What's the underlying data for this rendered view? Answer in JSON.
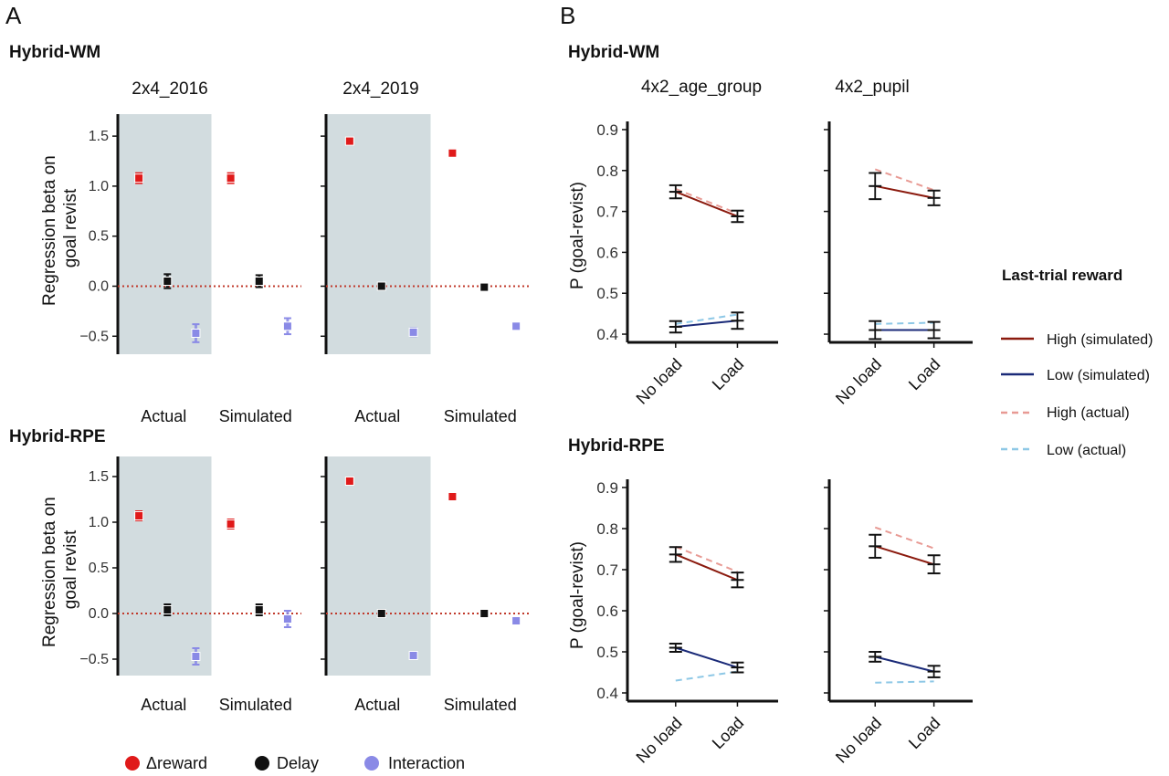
{
  "figure": {
    "panel_letters": [
      "A",
      "B"
    ],
    "sections": [
      "Hybrid-WM",
      "Hybrid-RPE"
    ],
    "groups": [
      "Actual",
      "Simulated"
    ],
    "xcats": [
      "No load",
      "Load"
    ],
    "panelA_ylabel": [
      "Regression beta on",
      "goal revist"
    ],
    "panelB_ylabel": "P (goal-revist)",
    "panelA_datasets": [
      "2x4_2016",
      "2x4_2019"
    ],
    "panelB_datasets": [
      "4x2_age_group",
      "4x2_pupil"
    ],
    "legendA": {
      "items": [
        {
          "label": "Δreward",
          "color": "#e01a1a"
        },
        {
          "label": "Delay",
          "color": "#111111"
        },
        {
          "label": "Interaction",
          "color": "#8a8ae6"
        }
      ]
    },
    "legendB": {
      "title": "Last-trial reward",
      "items": [
        {
          "label": "High (simulated)",
          "color": "#8b1a0e",
          "dash": "solid"
        },
        {
          "label": "Low (simulated)",
          "color": "#1a2a78",
          "dash": "solid"
        },
        {
          "label": "High (actual)",
          "color": "#e89a94",
          "dash": "dashed"
        },
        {
          "label": "Low (actual)",
          "color": "#8ec8e6",
          "dash": "dashed"
        }
      ]
    }
  },
  "chart_data": [
    {
      "type": "scatter",
      "panel": "A",
      "model": "Hybrid-WM",
      "dataset": "2x4_2016",
      "ylim": [
        -0.68,
        1.72
      ],
      "yticks": [
        -0.5,
        0.0,
        0.5,
        1.0,
        1.5
      ],
      "reference_line": 0,
      "categories": [
        "Actual",
        "Simulated"
      ],
      "shaded_group": "Actual",
      "series": [
        {
          "name": "Δreward",
          "color": "#e01a1a",
          "points": [
            {
              "x": "Actual",
              "y": 1.08,
              "err": 0.05
            },
            {
              "x": "Simulated",
              "y": 1.08,
              "err": 0.05
            }
          ]
        },
        {
          "name": "Delay",
          "color": "#111111",
          "points": [
            {
              "x": "Actual",
              "y": 0.05,
              "err": 0.07
            },
            {
              "x": "Simulated",
              "y": 0.05,
              "err": 0.06
            }
          ]
        },
        {
          "name": "Interaction",
          "color": "#8a8ae6",
          "points": [
            {
              "x": "Actual",
              "y": -0.47,
              "err": 0.09
            },
            {
              "x": "Simulated",
              "y": -0.4,
              "err": 0.08
            }
          ]
        }
      ]
    },
    {
      "type": "scatter",
      "panel": "A",
      "model": "Hybrid-WM",
      "dataset": "2x4_2019",
      "ylim": [
        -0.68,
        1.72
      ],
      "yticks": [
        -0.5,
        0.0,
        0.5,
        1.0,
        1.5
      ],
      "reference_line": 0,
      "categories": [
        "Actual",
        "Simulated"
      ],
      "shaded_group": "Actual",
      "series": [
        {
          "name": "Δreward",
          "color": "#e01a1a",
          "points": [
            {
              "x": "Actual",
              "y": 1.45,
              "err": 0.02
            },
            {
              "x": "Simulated",
              "y": 1.33,
              "err": 0.02
            }
          ]
        },
        {
          "name": "Delay",
          "color": "#111111",
          "points": [
            {
              "x": "Actual",
              "y": 0.0,
              "err": 0.03
            },
            {
              "x": "Simulated",
              "y": -0.01,
              "err": 0.02
            }
          ]
        },
        {
          "name": "Interaction",
          "color": "#8a8ae6",
          "points": [
            {
              "x": "Actual",
              "y": -0.46,
              "err": 0.04
            },
            {
              "x": "Simulated",
              "y": -0.4,
              "err": 0.03
            }
          ]
        }
      ]
    },
    {
      "type": "scatter",
      "panel": "A",
      "model": "Hybrid-RPE",
      "dataset": "2x4_2016",
      "ylim": [
        -0.68,
        1.72
      ],
      "yticks": [
        -0.5,
        0.0,
        0.5,
        1.0,
        1.5
      ],
      "reference_line": 0,
      "categories": [
        "Actual",
        "Simulated"
      ],
      "shaded_group": "Actual",
      "series": [
        {
          "name": "Δreward",
          "color": "#e01a1a",
          "points": [
            {
              "x": "Actual",
              "y": 1.07,
              "err": 0.05
            },
            {
              "x": "Simulated",
              "y": 0.98,
              "err": 0.05
            }
          ]
        },
        {
          "name": "Delay",
          "color": "#111111",
          "points": [
            {
              "x": "Actual",
              "y": 0.04,
              "err": 0.06
            },
            {
              "x": "Simulated",
              "y": 0.04,
              "err": 0.06
            }
          ]
        },
        {
          "name": "Interaction",
          "color": "#8a8ae6",
          "points": [
            {
              "x": "Actual",
              "y": -0.47,
              "err": 0.09
            },
            {
              "x": "Simulated",
              "y": -0.06,
              "err": 0.09
            }
          ]
        }
      ]
    },
    {
      "type": "scatter",
      "panel": "A",
      "model": "Hybrid-RPE",
      "dataset": "2x4_2019",
      "ylim": [
        -0.68,
        1.72
      ],
      "yticks": [
        -0.5,
        0.0,
        0.5,
        1.0,
        1.5
      ],
      "reference_line": 0,
      "categories": [
        "Actual",
        "Simulated"
      ],
      "shaded_group": "Actual",
      "series": [
        {
          "name": "Δreward",
          "color": "#e01a1a",
          "points": [
            {
              "x": "Actual",
              "y": 1.45,
              "err": 0.02
            },
            {
              "x": "Simulated",
              "y": 1.28,
              "err": 0.02
            }
          ]
        },
        {
          "name": "Delay",
          "color": "#111111",
          "points": [
            {
              "x": "Actual",
              "y": 0.0,
              "err": 0.03
            },
            {
              "x": "Simulated",
              "y": 0.0,
              "err": 0.02
            }
          ]
        },
        {
          "name": "Interaction",
          "color": "#8a8ae6",
          "points": [
            {
              "x": "Actual",
              "y": -0.46,
              "err": 0.04
            },
            {
              "x": "Simulated",
              "y": -0.08,
              "err": 0.03
            }
          ]
        }
      ]
    },
    {
      "type": "line",
      "panel": "B",
      "model": "Hybrid-WM",
      "dataset": "4x2_age_group",
      "x": [
        "No load",
        "Load"
      ],
      "ylim": [
        0.38,
        0.92
      ],
      "yticks": [
        0.4,
        0.5,
        0.6,
        0.7,
        0.8,
        0.9
      ],
      "series": [
        {
          "name": "High (simulated)",
          "values": [
            0.748,
            0.688
          ],
          "err": [
            0.016,
            0.014
          ]
        },
        {
          "name": "Low (simulated)",
          "values": [
            0.418,
            0.433
          ],
          "err": [
            0.014,
            0.02
          ]
        },
        {
          "name": "High (actual)",
          "values": [
            0.755,
            0.695
          ]
        },
        {
          "name": "Low (actual)",
          "values": [
            0.425,
            0.448
          ]
        }
      ]
    },
    {
      "type": "line",
      "panel": "B",
      "model": "Hybrid-WM",
      "dataset": "4x2_pupil",
      "x": [
        "No load",
        "Load"
      ],
      "ylim": [
        0.38,
        0.92
      ],
      "yticks": [
        0.4,
        0.5,
        0.6,
        0.7,
        0.8,
        0.9
      ],
      "series": [
        {
          "name": "High (simulated)",
          "values": [
            0.762,
            0.733
          ],
          "err": [
            0.032,
            0.018
          ]
        },
        {
          "name": "Low (simulated)",
          "values": [
            0.41,
            0.41
          ],
          "err": [
            0.022,
            0.02
          ]
        },
        {
          "name": "High (actual)",
          "values": [
            0.803,
            0.752
          ]
        },
        {
          "name": "Low (actual)",
          "values": [
            0.425,
            0.428
          ]
        }
      ]
    },
    {
      "type": "line",
      "panel": "B",
      "model": "Hybrid-RPE",
      "dataset": "4x2_age_group",
      "x": [
        "No load",
        "Load"
      ],
      "ylim": [
        0.38,
        0.92
      ],
      "yticks": [
        0.4,
        0.5,
        0.6,
        0.7,
        0.8,
        0.9
      ],
      "series": [
        {
          "name": "High (simulated)",
          "values": [
            0.737,
            0.675
          ],
          "err": [
            0.018,
            0.018
          ]
        },
        {
          "name": "Low (simulated)",
          "values": [
            0.51,
            0.462
          ],
          "err": [
            0.01,
            0.012
          ]
        },
        {
          "name": "High (actual)",
          "values": [
            0.756,
            0.695
          ]
        },
        {
          "name": "Low (actual)",
          "values": [
            0.43,
            0.452
          ]
        }
      ]
    },
    {
      "type": "line",
      "panel": "B",
      "model": "Hybrid-RPE",
      "dataset": "4x2_pupil",
      "x": [
        "No load",
        "Load"
      ],
      "ylim": [
        0.38,
        0.92
      ],
      "yticks": [
        0.4,
        0.5,
        0.6,
        0.7,
        0.8,
        0.9
      ],
      "series": [
        {
          "name": "High (simulated)",
          "values": [
            0.757,
            0.713
          ],
          "err": [
            0.028,
            0.022
          ]
        },
        {
          "name": "Low (simulated)",
          "values": [
            0.488,
            0.452
          ],
          "err": [
            0.012,
            0.014
          ]
        },
        {
          "name": "High (actual)",
          "values": [
            0.803,
            0.752
          ]
        },
        {
          "name": "Low (actual)",
          "values": [
            0.425,
            0.428
          ]
        }
      ]
    }
  ]
}
